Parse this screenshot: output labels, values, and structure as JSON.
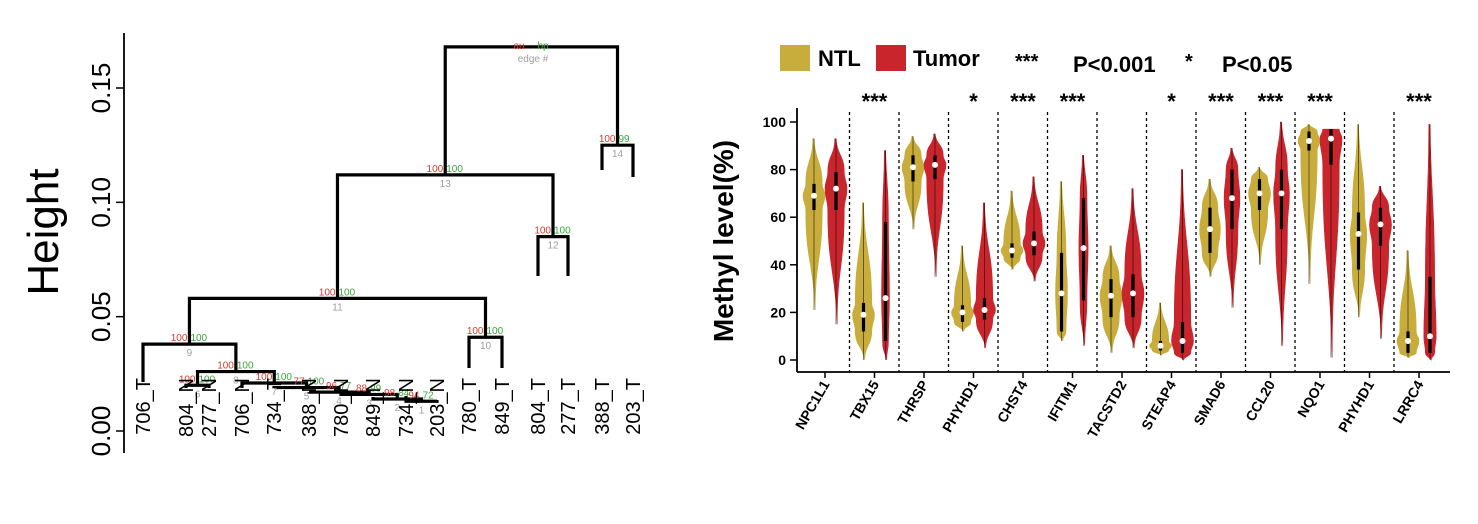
{
  "chart_data": [
    {
      "type": "dendrogram",
      "ylabel": "Height",
      "ylim": [
        0,
        0.17
      ],
      "y_ticks": [
        "0.00",
        "0.05",
        "0.10",
        "0.15"
      ],
      "header_labels": {
        "au": "au",
        "bp": "bp",
        "edge": "edge #"
      },
      "leaves": [
        "706_T",
        "804_N",
        "277_N",
        "706_N",
        "734_T",
        "388_N",
        "780_N",
        "849_N",
        "734_N",
        "203_N",
        "780_T",
        "849_T",
        "804_T",
        "277_T",
        "388_T",
        "203_T"
      ],
      "clusters": [
        {
          "edge": "1",
          "height": 0.013,
          "merge": [
            "734_N",
            "203_N"
          ],
          "au": "94",
          "bp": "72"
        },
        {
          "edge": "2",
          "height": 0.014,
          "merge": [
            "849_N",
            "[734_N, 203_N]"
          ],
          "au": "98",
          "bp": "84"
        },
        {
          "edge": "3",
          "height": 0.016,
          "merge": [
            "780_N",
            "[849_N, 734_N, 203_N]"
          ],
          "au": "88",
          "bp": "99"
        },
        {
          "edge": "4",
          "height": 0.017,
          "merge": [
            "388_N",
            "[780_N, ...]"
          ],
          "au": "96",
          "bp": "77"
        },
        {
          "edge": "5",
          "height": 0.019,
          "merge": [
            "734_T",
            "[388_N, ...]"
          ],
          "au": "77",
          "bp": "100"
        },
        {
          "edge": "6",
          "height": 0.02,
          "merge": [
            "804_N",
            "277_N"
          ],
          "au": "100",
          "bp": "100"
        },
        {
          "edge": "7",
          "height": 0.021,
          "merge": [
            "706_N",
            "[734_T, ...]"
          ],
          "au": "100",
          "bp": "100"
        },
        {
          "edge": "8",
          "height": 0.026,
          "merge": [
            "[804_N, 277_N]",
            "[706_N, ...]"
          ],
          "au": "100",
          "bp": "100"
        },
        {
          "edge": "9",
          "height": 0.038,
          "merge": [
            "706_T",
            "[804_N, ...]"
          ],
          "au": "100",
          "bp": "100"
        },
        {
          "edge": "10",
          "height": 0.041,
          "merge": [
            "780_T",
            "849_T"
          ],
          "au": "100",
          "bp": "100"
        },
        {
          "edge": "11",
          "height": 0.058,
          "merge": [
            "[706_T, ...]",
            "[780_T, 849_T]"
          ],
          "au": "100",
          "bp": "100"
        },
        {
          "edge": "12",
          "height": 0.085,
          "merge": [
            "804_T",
            "277_T"
          ],
          "au": "100",
          "bp": "100"
        },
        {
          "edge": "13",
          "height": 0.112,
          "merge": [
            "[706_T, ... 849_T]",
            "[804_T, 277_T]"
          ],
          "au": "100",
          "bp": "100"
        },
        {
          "edge": "14",
          "height": 0.125,
          "merge": [
            "388_T",
            "203_T"
          ],
          "au": "100",
          "bp": "99"
        },
        {
          "edge": "",
          "height": 0.168,
          "merge": [
            "[all others]",
            "[388_T, 203_T]"
          ],
          "au": "",
          "bp": ""
        }
      ]
    },
    {
      "type": "violin",
      "ylabel": "Methyl level(%)",
      "ylim": [
        0,
        100
      ],
      "y_ticks": [
        "0",
        "20",
        "40",
        "60",
        "80",
        "100"
      ],
      "legend": [
        {
          "name": "NTL",
          "color": "#c8ad3c"
        },
        {
          "name": "Tumor",
          "color": "#c9252c"
        }
      ],
      "significance_legend": [
        {
          "symbol": "***",
          "text": "P<0.001"
        },
        {
          "symbol": "*",
          "text": "P<0.05"
        }
      ],
      "categories": [
        "NPC1L1",
        "TBX15",
        "THRSP",
        "PHYHD1",
        "CHST4",
        "IFITM1",
        "TACSTD2",
        "STEAP4",
        "SMAD6",
        "CCL20",
        "NQO1",
        "PHYHD1",
        "LRRC4"
      ],
      "significance": [
        "",
        "***",
        "",
        "*",
        "***",
        "***",
        "",
        "*",
        "***",
        "***",
        "***",
        "",
        "***"
      ],
      "series": [
        {
          "name": "NTL",
          "min": [
            21,
            0,
            55,
            12,
            38,
            8,
            3,
            2,
            35,
            40,
            32,
            18,
            1
          ],
          "q1": [
            63,
            12,
            75,
            16,
            43,
            12,
            18,
            4,
            45,
            63,
            88,
            38,
            3
          ],
          "median": [
            69,
            19,
            81,
            20,
            46,
            28,
            27,
            6,
            55,
            70,
            92,
            53,
            8
          ],
          "q3": [
            74,
            24,
            86,
            23,
            49,
            45,
            34,
            8,
            64,
            76,
            96,
            62,
            12
          ],
          "max": [
            93,
            66,
            94,
            48,
            71,
            75,
            48,
            24,
            76,
            81,
            99,
            99,
            46
          ]
        },
        {
          "name": "Tumor",
          "min": [
            15,
            0,
            35,
            5,
            33,
            6,
            5,
            0,
            22,
            6,
            1,
            9,
            0
          ],
          "q1": [
            63,
            8,
            76,
            17,
            44,
            25,
            18,
            3,
            55,
            55,
            82,
            48,
            3
          ],
          "median": [
            72,
            26,
            82,
            21,
            49,
            47,
            28,
            8,
            68,
            70,
            93,
            57,
            10
          ],
          "q3": [
            79,
            58,
            86,
            26,
            54,
            68,
            36,
            16,
            80,
            80,
            97,
            64,
            35
          ],
          "max": [
            93,
            88,
            95,
            66,
            77,
            86,
            72,
            80,
            89,
            100,
            97,
            73,
            99
          ]
        }
      ]
    }
  ]
}
